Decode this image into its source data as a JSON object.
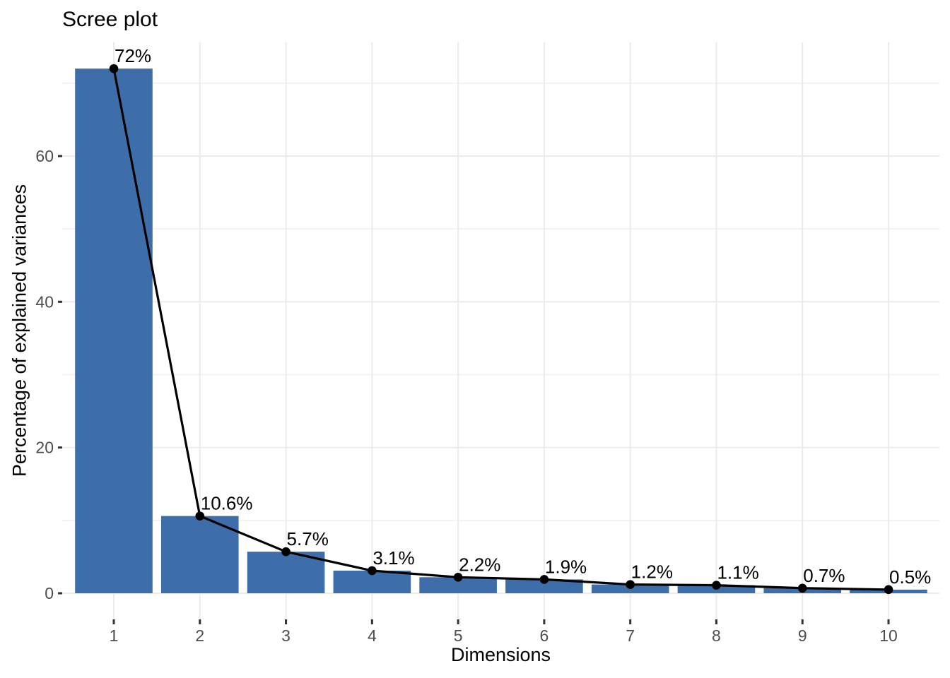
{
  "figure": {
    "background": "#FFFFFF"
  },
  "chart_data": {
    "type": "bar",
    "overlay": "line-with-points",
    "title": "Scree plot",
    "xlabel": "Dimensions",
    "ylabel": "Percentage of explained variances",
    "categories": [
      "1",
      "2",
      "3",
      "4",
      "5",
      "6",
      "7",
      "8",
      "9",
      "10"
    ],
    "values": [
      72,
      10.6,
      5.7,
      3.1,
      2.2,
      1.9,
      1.2,
      1.1,
      0.7,
      0.5
    ],
    "point_labels": [
      "72%",
      "10.6%",
      "5.7%",
      "3.1%",
      "2.2%",
      "1.9%",
      "1.2%",
      "1.1%",
      "0.7%",
      "0.5%"
    ],
    "y_ticks": [
      0,
      20,
      40,
      60
    ],
    "y_minor_gridlines": [
      10,
      30,
      50,
      70
    ],
    "ylim": [
      -3.6,
      75.6
    ],
    "xlim": [
      0.39,
      10.59
    ],
    "grid": true,
    "legend_position": "none",
    "colors": {
      "bar_fill": "#3E6EAA",
      "line": "#000000",
      "point": "#000000",
      "grid_major": "#EBEBEB",
      "grid_minor": "#EFEFEF",
      "axis_text": "#4D4D4D",
      "tick_mark": "#333333",
      "label_text": "#000000"
    }
  }
}
